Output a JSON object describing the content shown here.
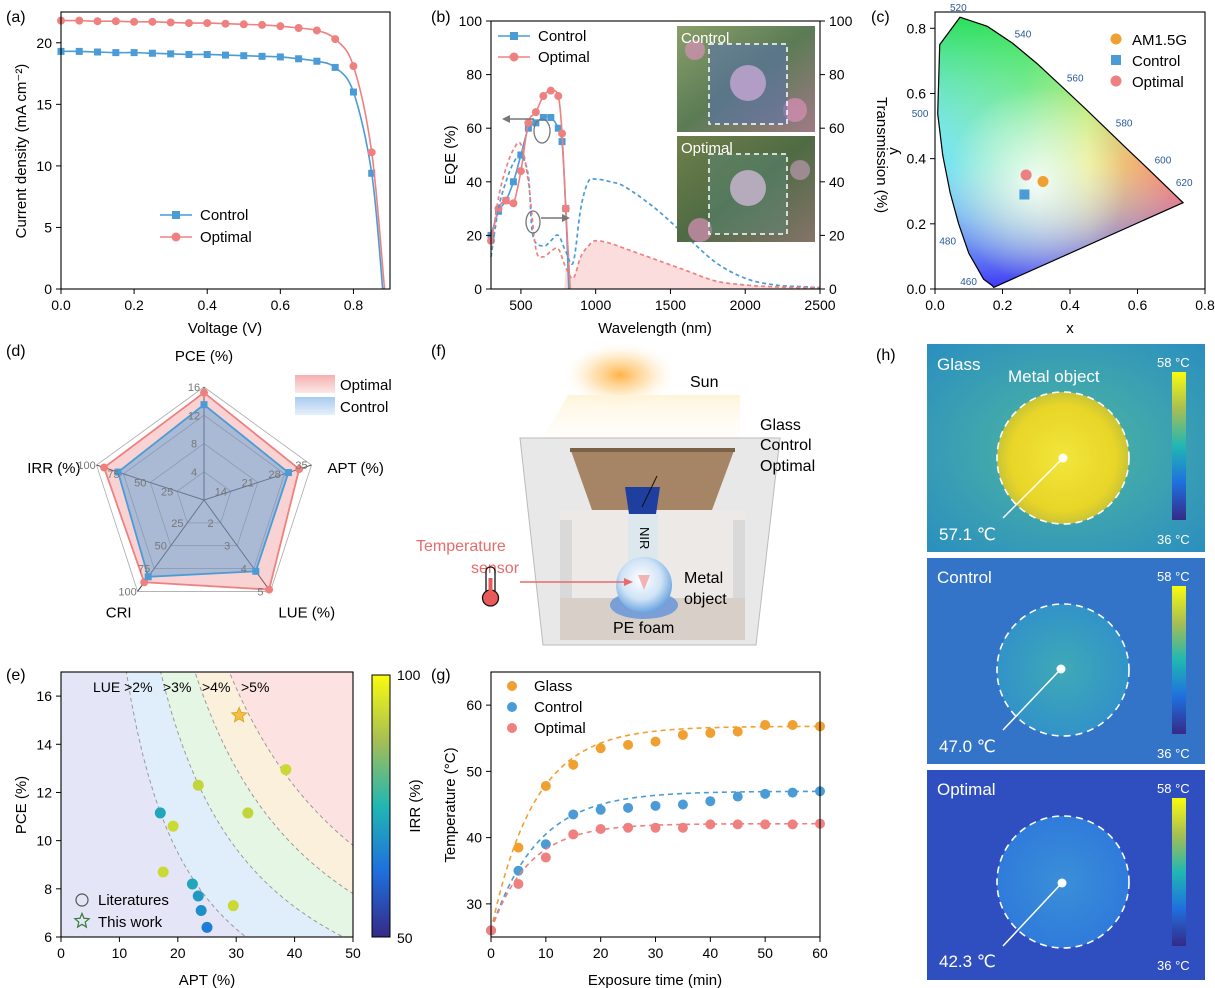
{
  "panel_labels": {
    "a": "(a)",
    "b": "(b)",
    "c": "(c)",
    "d": "(d)",
    "e": "(e)",
    "f": "(f)",
    "g": "(g)",
    "h": "(h)"
  },
  "chart_data": [
    {
      "id": "a",
      "type": "line",
      "xlabel": "Voltage (V)",
      "ylabel": "Current density (mA cm⁻²)",
      "xlim": [
        0,
        0.9
      ],
      "ylim": [
        0,
        22.5
      ],
      "xticks": [
        0.0,
        0.2,
        0.4,
        0.6,
        0.8
      ],
      "yticks": [
        0,
        5,
        10,
        15,
        20
      ],
      "legend_position": "center-left",
      "series": [
        {
          "name": "Control",
          "color": "#4a9bd6",
          "marker": "square",
          "x": [
            0,
            0.05,
            0.1,
            0.15,
            0.2,
            0.25,
            0.3,
            0.35,
            0.4,
            0.45,
            0.5,
            0.55,
            0.6,
            0.65,
            0.7,
            0.75,
            0.8,
            0.85,
            0.88
          ],
          "y": [
            19.3,
            19.3,
            19.25,
            19.2,
            19.2,
            19.15,
            19.1,
            19.05,
            19.05,
            19.0,
            18.95,
            18.9,
            18.85,
            18.7,
            18.5,
            18.0,
            16.0,
            9.4,
            0
          ]
        },
        {
          "name": "Optimal",
          "color": "#ef8080",
          "marker": "circle",
          "x": [
            0,
            0.05,
            0.1,
            0.15,
            0.2,
            0.25,
            0.3,
            0.35,
            0.4,
            0.45,
            0.5,
            0.55,
            0.6,
            0.65,
            0.7,
            0.75,
            0.8,
            0.85,
            0.885
          ],
          "y": [
            21.8,
            21.8,
            21.75,
            21.75,
            21.7,
            21.7,
            21.65,
            21.6,
            21.6,
            21.55,
            21.5,
            21.45,
            21.35,
            21.2,
            21.0,
            20.3,
            18.1,
            11.1,
            0
          ]
        }
      ]
    },
    {
      "id": "b",
      "type": "line",
      "xlabel": "Wavelength (nm)",
      "ylabel": "EQE (%)",
      "y2label": "Transmission (%)",
      "xlim": [
        300,
        2500
      ],
      "ylim": [
        0,
        100
      ],
      "y2lim": [
        0,
        100
      ],
      "xticks": [
        500,
        1000,
        1500,
        2000,
        2500
      ],
      "yticks": [
        0,
        20,
        40,
        60,
        80,
        100
      ],
      "y2ticks": [
        0,
        20,
        40,
        60,
        80,
        100
      ],
      "inset_labels": [
        "Control",
        "Optimal"
      ],
      "series": [
        {
          "name": "Control",
          "color": "#4a9bd6",
          "marker": "square",
          "axis": "left",
          "x": [
            300,
            350,
            400,
            450,
            500,
            550,
            600,
            650,
            700,
            750,
            775,
            800,
            820
          ],
          "y": [
            20,
            29,
            33,
            40,
            50,
            60,
            62,
            64,
            64,
            60,
            55,
            30,
            0
          ]
        },
        {
          "name": "Optimal",
          "color": "#ef8080",
          "marker": "circle",
          "axis": "left",
          "x": [
            300,
            350,
            400,
            450,
            500,
            550,
            600,
            650,
            700,
            750,
            775,
            800,
            830
          ],
          "y": [
            18,
            30,
            33,
            32,
            44,
            62,
            66,
            72,
            74,
            72,
            58,
            30,
            0
          ]
        },
        {
          "name": "Control transmission",
          "color": "#4a9bd6",
          "style": "dashed",
          "axis": "right",
          "x": [
            300,
            350,
            400,
            450,
            500,
            550,
            580,
            650,
            700,
            750,
            800,
            850,
            900,
            950,
            1000,
            1100,
            1200,
            1400,
            1600,
            1800,
            2000,
            2200,
            2400,
            2500
          ],
          "y": [
            12,
            30,
            40,
            47,
            50,
            42,
            20,
            16,
            18,
            20,
            14,
            10,
            30,
            40,
            41,
            40,
            38,
            30,
            20,
            10,
            4,
            1.5,
            0.8,
            0.5
          ]
        },
        {
          "name": "Optimal transmission",
          "color": "#ef8080",
          "style": "dashed",
          "axis": "right",
          "x": [
            300,
            350,
            400,
            450,
            500,
            550,
            600,
            650,
            700,
            750,
            800,
            850,
            900,
            950,
            1000,
            1100,
            1200,
            1400,
            1600,
            1800,
            2000,
            2200,
            2400,
            2500
          ],
          "y": [
            15,
            34,
            45,
            52,
            54,
            40,
            15,
            12,
            14,
            15,
            8,
            4,
            12,
            16,
            18,
            17,
            15,
            11,
            7,
            3,
            1.5,
            0.8,
            0.5,
            0.5
          ]
        }
      ]
    },
    {
      "id": "c",
      "type": "scatter",
      "xlabel": "x",
      "ylabel": "y",
      "xlim": [
        0,
        0.8
      ],
      "ylim": [
        0,
        0.85
      ],
      "xticks": [
        0.0,
        0.2,
        0.4,
        0.6,
        0.8
      ],
      "yticks": [
        0.0,
        0.2,
        0.4,
        0.6,
        0.8
      ],
      "wavelength_labels": [
        "460",
        "480",
        "500",
        "520",
        "540",
        "560",
        "580",
        "600",
        "620"
      ],
      "series": [
        {
          "name": "AM1.5G",
          "color": "#f0a030",
          "marker": "circle",
          "x": [
            0.32
          ],
          "y": [
            0.33
          ]
        },
        {
          "name": "Control",
          "color": "#4a9bd6",
          "marker": "square",
          "x": [
            0.265
          ],
          "y": [
            0.29
          ]
        },
        {
          "name": "Optimal",
          "color": "#ef8080",
          "marker": "circle",
          "x": [
            0.27
          ],
          "y": [
            0.35
          ]
        }
      ]
    },
    {
      "id": "d",
      "type": "radar",
      "axes": [
        "PCE (%)",
        "APT (%)",
        "LUE (%)",
        "CRI",
        "IRR (%)"
      ],
      "axis_max": [
        16,
        35,
        5,
        100,
        100
      ],
      "axis_ticks": [
        [
          "4",
          "8",
          "12",
          "16"
        ],
        [
          "14",
          "21",
          "28",
          "35"
        ],
        [
          "2",
          "3",
          "4",
          "5"
        ],
        [
          "25",
          "50",
          "75",
          "100"
        ],
        [
          "25",
          "50",
          "75",
          "100"
        ]
      ],
      "legend_position": "top-right",
      "series": [
        {
          "name": "Optimal",
          "color": "#ef8080",
          "values": [
            15.2,
            31,
            4.9,
            90,
            93
          ]
        },
        {
          "name": "Control",
          "color": "#4a9bd6",
          "values": [
            13.5,
            27.5,
            3.9,
            84,
            80
          ]
        }
      ]
    },
    {
      "id": "e",
      "type": "scatter",
      "xlabel": "APT (%)",
      "ylabel": "PCE (%)",
      "clabel": "IRR (%)",
      "xlim": [
        0,
        50
      ],
      "ylim": [
        6,
        17
      ],
      "clim": [
        50,
        100
      ],
      "xticks": [
        0,
        10,
        20,
        30,
        40,
        50
      ],
      "yticks": [
        6,
        8,
        10,
        12,
        14,
        16
      ],
      "cticks": [
        50,
        100
      ],
      "lue_labels": [
        "LUE >2%",
        ">3%",
        ">4%",
        ">5%"
      ],
      "legend": [
        "Literatures",
        "This work"
      ],
      "legend_position": "bottom-left",
      "points": [
        {
          "x": 17,
          "y": 11.15,
          "irr": 72
        },
        {
          "x": 19.2,
          "y": 10.6,
          "irr": 93
        },
        {
          "x": 23.5,
          "y": 12.3,
          "irr": 92
        },
        {
          "x": 32,
          "y": 11.15,
          "irr": 92
        },
        {
          "x": 38.5,
          "y": 12.95,
          "irr": 93
        },
        {
          "x": 17.5,
          "y": 8.7,
          "irr": 93
        },
        {
          "x": 22.5,
          "y": 8.2,
          "irr": 72
        },
        {
          "x": 23.5,
          "y": 7.7,
          "irr": 70
        },
        {
          "x": 24,
          "y": 7.1,
          "irr": 68
        },
        {
          "x": 25,
          "y": 6.4,
          "irr": 65
        },
        {
          "x": 29.5,
          "y": 7.3,
          "irr": 93
        }
      ],
      "this_work": {
        "x": 30.5,
        "y": 15.2
      }
    },
    {
      "id": "g",
      "type": "scatter",
      "xlabel": "Exposure time (min)",
      "ylabel": "Temperature (°C)",
      "xlim": [
        0,
        60
      ],
      "ylim": [
        25,
        65
      ],
      "xticks": [
        0,
        10,
        20,
        30,
        40,
        50,
        60
      ],
      "yticks": [
        30,
        40,
        50,
        60
      ],
      "legend_position": "top-left",
      "series": [
        {
          "name": "Glass",
          "color": "#f0a030",
          "x": [
            0,
            5,
            10,
            15,
            20,
            25,
            30,
            35,
            40,
            45,
            50,
            55,
            60
          ],
          "y": [
            26,
            38.5,
            47.8,
            51,
            53.5,
            54,
            54.5,
            55.5,
            55.8,
            56,
            57,
            57,
            56.8
          ]
        },
        {
          "name": "Control",
          "color": "#4a9bd6",
          "x": [
            0,
            5,
            10,
            15,
            20,
            25,
            30,
            35,
            40,
            45,
            50,
            55,
            60
          ],
          "y": [
            26,
            35,
            39,
            43.5,
            44.2,
            44.5,
            44.8,
            45,
            45.5,
            46.2,
            46.6,
            46.8,
            47
          ]
        },
        {
          "name": "Optimal",
          "color": "#ef8080",
          "x": [
            0,
            5,
            10,
            15,
            20,
            25,
            30,
            35,
            40,
            45,
            50,
            55,
            60
          ],
          "y": [
            26,
            33,
            37,
            40.5,
            41.3,
            41.5,
            41.5,
            41.5,
            42,
            42,
            42,
            42,
            42.1
          ]
        }
      ]
    }
  ],
  "schematic_f": {
    "sun": "Sun",
    "glass_label_lines": [
      "Glass",
      "Control",
      "Optimal"
    ],
    "nir": "NIR",
    "sensor_lines": [
      "Temperature",
      "sensor"
    ],
    "metal_lines": [
      "Metal",
      "object"
    ],
    "foam": "PE foam"
  },
  "thermal_h": {
    "object_label": "Metal object",
    "scale_max": "58 °C",
    "scale_min": "36 °C",
    "panels": [
      {
        "name": "Glass",
        "temp": "57.1 ℃"
      },
      {
        "name": "Control",
        "temp": "47.0 ℃"
      },
      {
        "name": "Optimal",
        "temp": "42.3 ℃"
      }
    ]
  }
}
